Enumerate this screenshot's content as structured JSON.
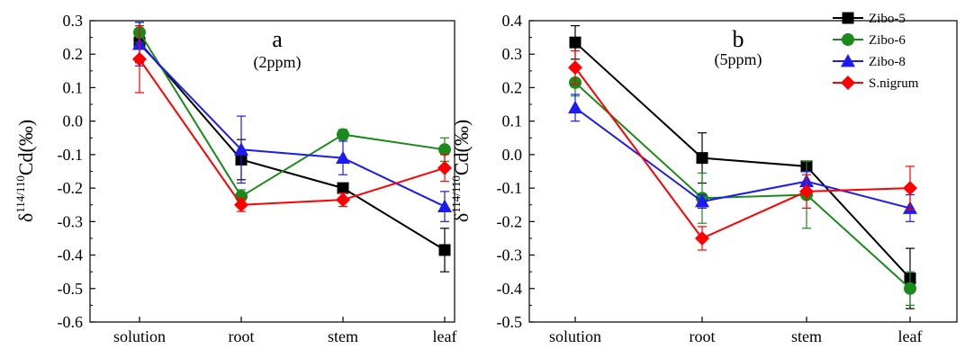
{
  "chart_data": [
    {
      "type": "line",
      "panel_label": "a",
      "subtitle": "(2ppm)",
      "ylabel": {
        "prefix": "δ",
        "superscript": "114/110",
        "main": "Cd(‰)"
      },
      "xlabel": "",
      "categories": [
        "solution",
        "root",
        "stem",
        "leaf"
      ],
      "ylim": [
        -0.6,
        0.3
      ],
      "yticks": [
        0.3,
        0.2,
        0.1,
        0.0,
        -0.1,
        -0.2,
        -0.3,
        -0.4,
        -0.5,
        -0.6
      ],
      "ytick_labels": [
        "0.3",
        "0.2",
        "0.1",
        "0.0",
        "-0.1",
        "-0.2",
        "-0.3",
        "-0.4",
        "-0.5",
        "-0.6"
      ],
      "grid": false,
      "legend": null,
      "series": [
        {
          "name": "Zibo-5",
          "marker": "square",
          "color": "#000000",
          "values": [
            0.235,
            -0.115,
            -0.2,
            -0.385
          ],
          "errors": [
            0.06,
            0.06,
            0.01,
            0.065
          ]
        },
        {
          "name": "Zibo-6",
          "marker": "circle",
          "color": "#1a8a1a",
          "values": [
            0.265,
            -0.225,
            -0.04,
            -0.085
          ],
          "errors": [
            0.03,
            0.02,
            0.015,
            0.035
          ]
        },
        {
          "name": "Zibo-8",
          "marker": "triangle",
          "color": "#1c1cf0",
          "values": [
            0.23,
            -0.085,
            -0.11,
            -0.255
          ],
          "errors": [
            0.065,
            0.1,
            0.05,
            0.045
          ]
        },
        {
          "name": "S.nigrum",
          "marker": "diamond",
          "color": "#ff0000",
          "values": [
            0.185,
            -0.25,
            -0.235,
            -0.14
          ],
          "errors": [
            0.1,
            0.02,
            0.02,
            0.04
          ]
        }
      ]
    },
    {
      "type": "line",
      "panel_label": "b",
      "subtitle": "(5ppm)",
      "ylabel": {
        "prefix": "δ",
        "superscript": "114/110",
        "main": "Cd(‰)"
      },
      "xlabel": "",
      "categories": [
        "solution",
        "root",
        "stem",
        "leaf"
      ],
      "ylim": [
        -0.5,
        0.4
      ],
      "yticks": [
        0.4,
        0.3,
        0.2,
        0.1,
        0.0,
        -0.1,
        -0.2,
        -0.3,
        -0.4,
        -0.5
      ],
      "ytick_labels": [
        "0.4",
        "0.3",
        "0.2",
        "0.1",
        "0.0",
        "-0.1",
        "-0.2",
        "-0.3",
        "-0.4",
        "-0.5"
      ],
      "grid": false,
      "legend": {
        "position": "top-right",
        "entries": [
          "Zibo-5",
          "Zibo-6",
          "Zibo-8",
          "S.nigrum"
        ]
      },
      "series": [
        {
          "name": "Zibo-5",
          "marker": "square",
          "color": "#000000",
          "values": [
            0.335,
            -0.01,
            -0.035,
            -0.37
          ],
          "errors": [
            0.05,
            0.075,
            0.015,
            0.09
          ]
        },
        {
          "name": "Zibo-6",
          "marker": "circle",
          "color": "#1a8a1a",
          "values": [
            0.215,
            -0.13,
            -0.12,
            -0.4
          ],
          "errors": [
            0.04,
            0.075,
            0.1,
            0.05
          ]
        },
        {
          "name": "Zibo-8",
          "marker": "triangle",
          "color": "#1c1cf0",
          "values": [
            0.14,
            -0.14,
            -0.08,
            -0.16
          ],
          "errors": [
            0.04,
            0.02,
            0.03,
            0.04
          ]
        },
        {
          "name": "S.nigrum",
          "marker": "diamond",
          "color": "#ff0000",
          "values": [
            0.26,
            -0.25,
            -0.11,
            -0.1
          ],
          "errors": [
            0.05,
            0.035,
            0.05,
            0.065
          ]
        }
      ]
    }
  ]
}
